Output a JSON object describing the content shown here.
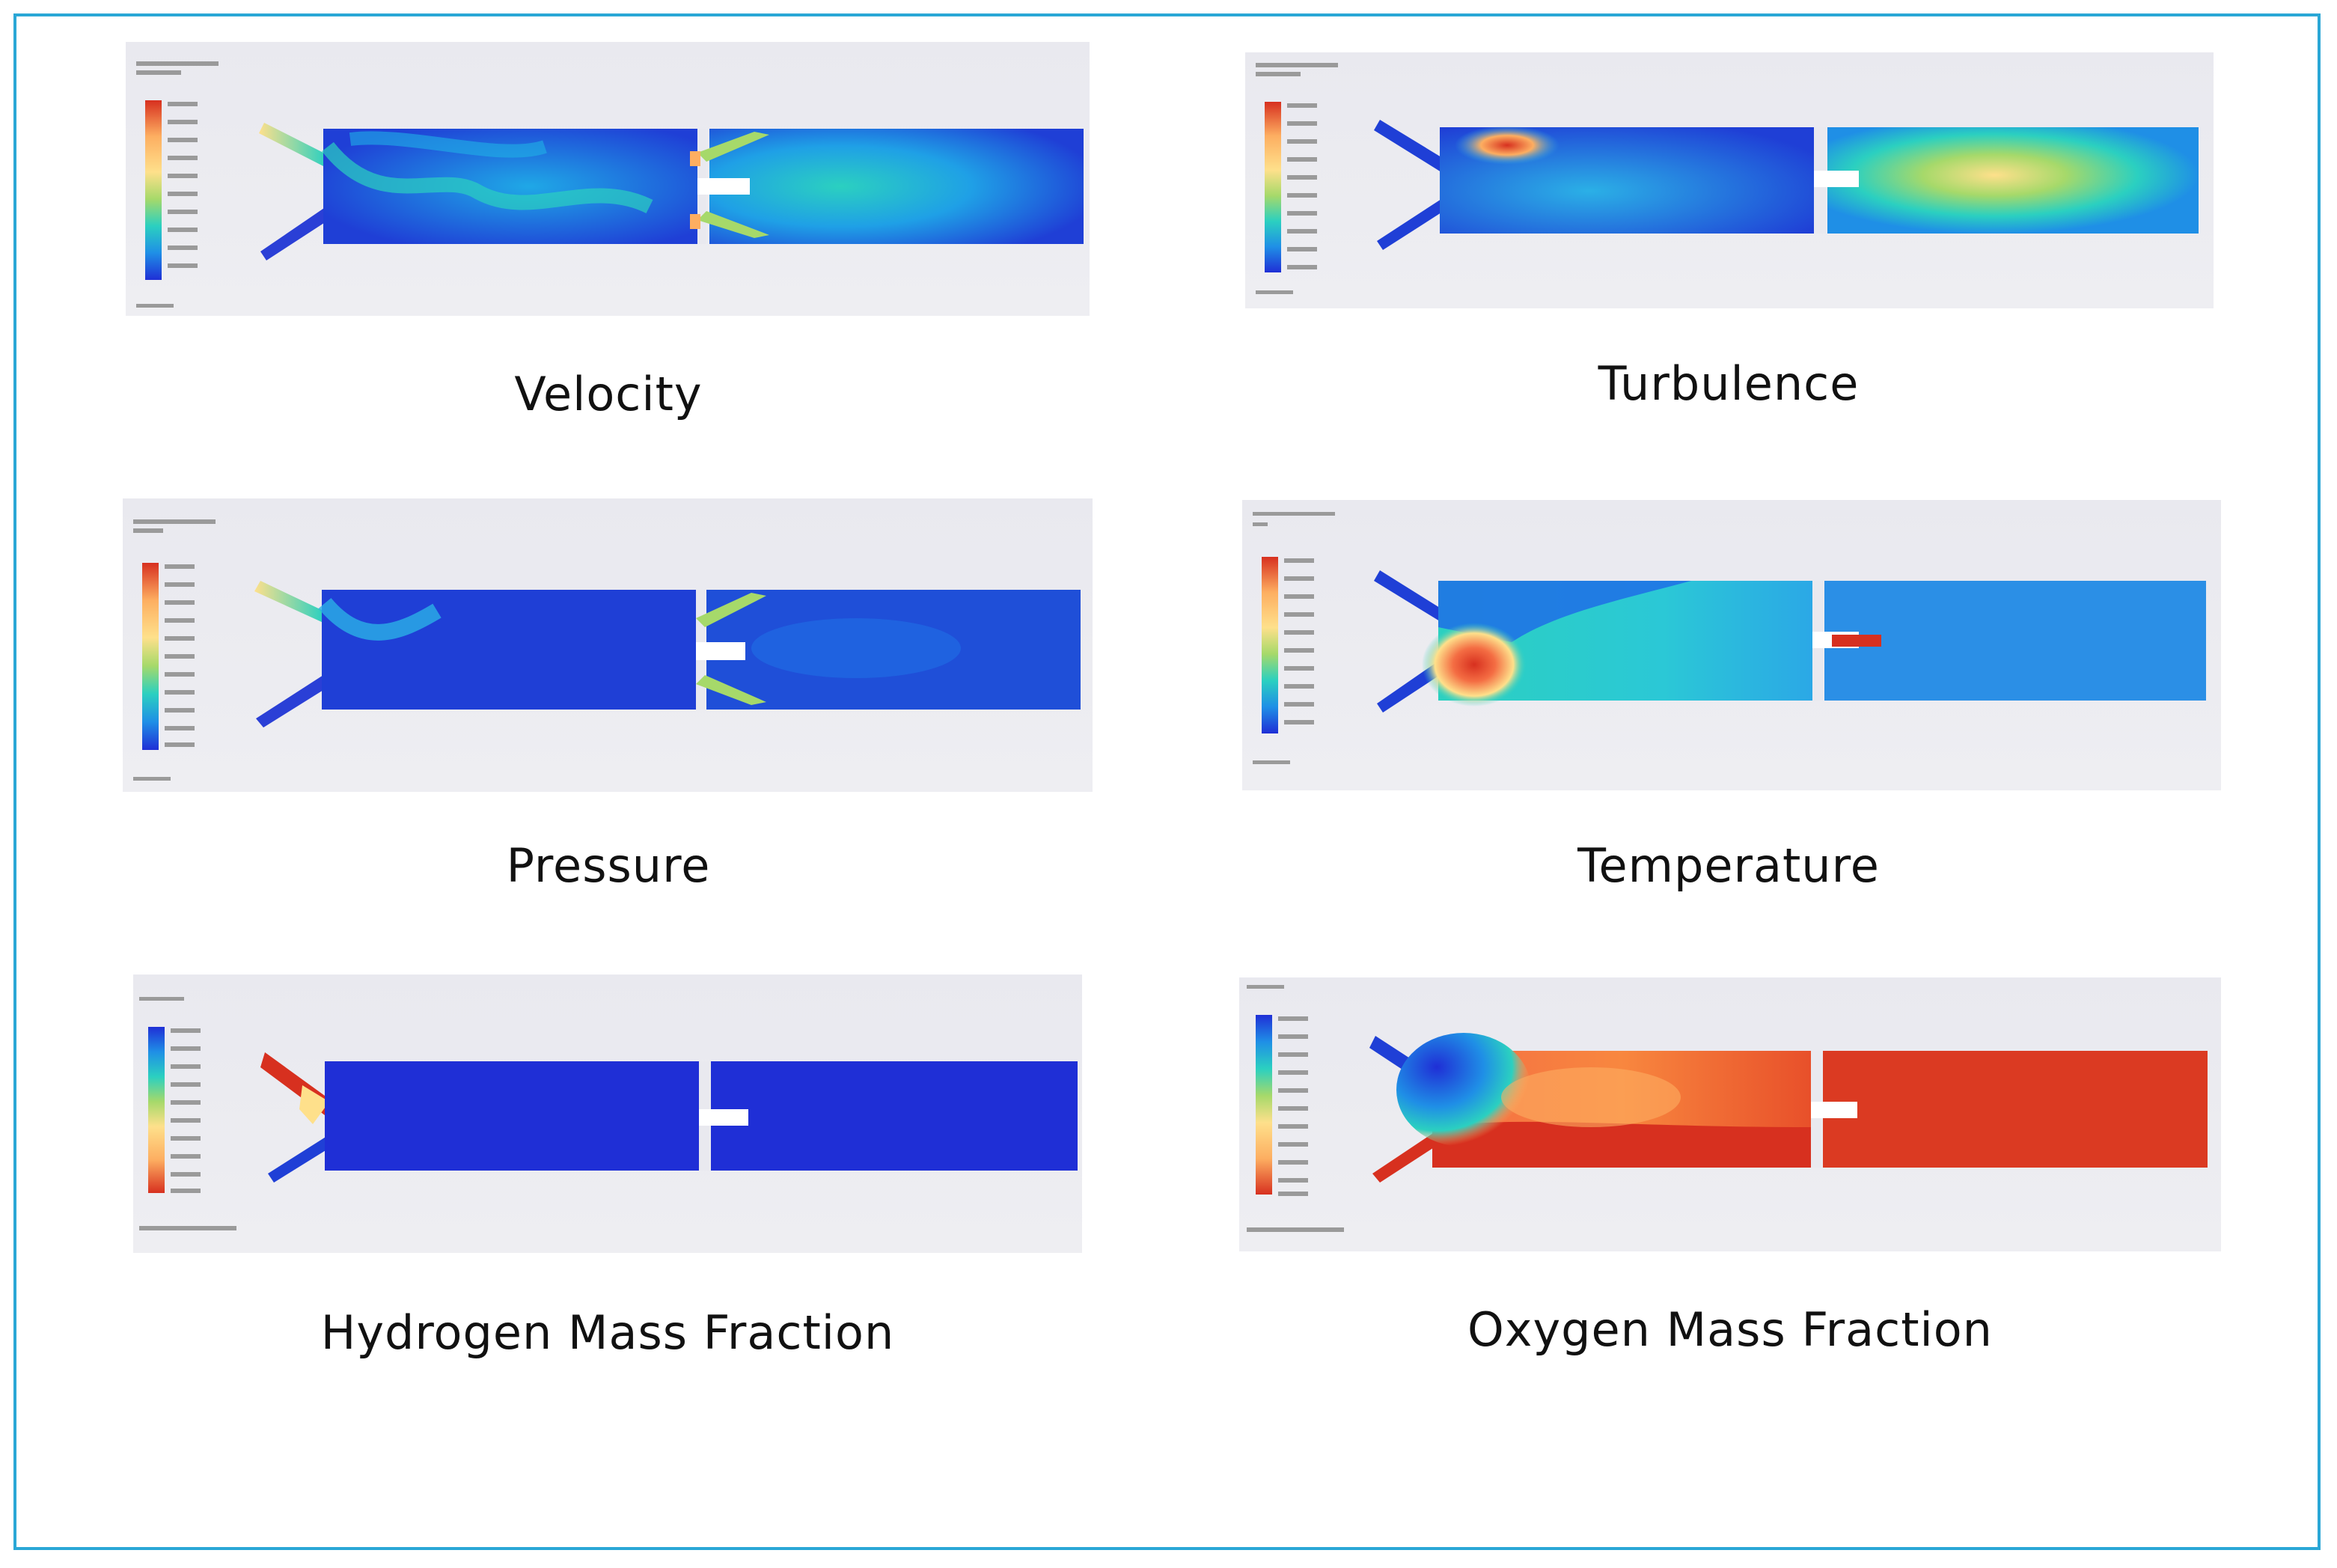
{
  "figure": {
    "border_color": "#2aa7d6",
    "panels": [
      {
        "id": "velocity",
        "caption": "Velocity"
      },
      {
        "id": "turbulence",
        "caption": "Turbulence"
      },
      {
        "id": "pressure",
        "caption": "Pressure"
      },
      {
        "id": "temperature",
        "caption": "Temperature"
      },
      {
        "id": "hydrogen",
        "caption": "Hydrogen Mass Fraction"
      },
      {
        "id": "oxygen",
        "caption": "Oxygen Mass Fraction"
      }
    ],
    "colormap": {
      "rainbow": [
        "#d7301f",
        "#f46d43",
        "#fdae61",
        "#fee08b",
        "#a6d96a",
        "#3ccf9a",
        "#2bb3e6",
        "#1f6fe6",
        "#1f2fd6"
      ],
      "reversed_note": "Hydrogen and Oxygen legends run blue at top to red at bottom"
    }
  }
}
